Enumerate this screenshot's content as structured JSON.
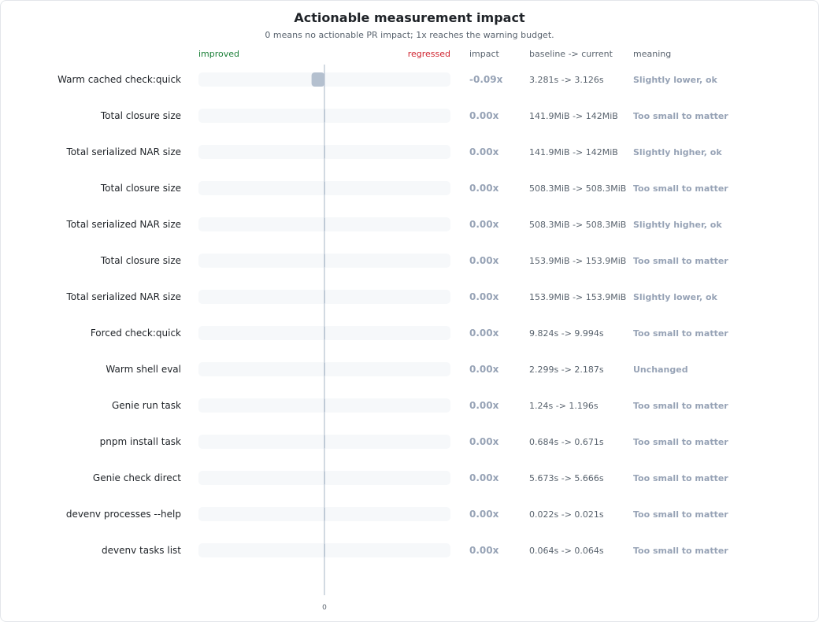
{
  "chart_data": {
    "type": "bar",
    "title": "Actionable measurement impact",
    "subtitle": "0 means no actionable PR impact; 1x reaches the warning budget.",
    "axis_left_label": "improved",
    "axis_right_label": "regressed",
    "xlim": [
      -1,
      1
    ],
    "zero_tick": "0",
    "column_headers": {
      "impact": "impact",
      "baseline": "baseline -> current",
      "meaning": "meaning"
    },
    "accent_color": "#b4c0cf",
    "rows": [
      {
        "label": "Warm cached check:quick",
        "value": -0.09,
        "impact": "-0.09x",
        "baseline": "3.281s -> 3.126s",
        "meaning": "Slightly lower, ok"
      },
      {
        "label": "Total closure size",
        "value": 0,
        "impact": "0.00x",
        "baseline": "141.9MiB -> 142MiB",
        "meaning": "Too small to matter"
      },
      {
        "label": "Total serialized NAR size",
        "value": 0,
        "impact": "0.00x",
        "baseline": "141.9MiB -> 142MiB",
        "meaning": "Slightly higher, ok"
      },
      {
        "label": "Total closure size",
        "value": 0,
        "impact": "0.00x",
        "baseline": "508.3MiB -> 508.3MiB",
        "meaning": "Too small to matter"
      },
      {
        "label": "Total serialized NAR size",
        "value": 0,
        "impact": "0.00x",
        "baseline": "508.3MiB -> 508.3MiB",
        "meaning": "Slightly higher, ok"
      },
      {
        "label": "Total closure size",
        "value": 0,
        "impact": "0.00x",
        "baseline": "153.9MiB -> 153.9MiB",
        "meaning": "Too small to matter"
      },
      {
        "label": "Total serialized NAR size",
        "value": 0,
        "impact": "0.00x",
        "baseline": "153.9MiB -> 153.9MiB",
        "meaning": "Slightly lower, ok"
      },
      {
        "label": "Forced check:quick",
        "value": 0,
        "impact": "0.00x",
        "baseline": "9.824s -> 9.994s",
        "meaning": "Too small to matter"
      },
      {
        "label": "Warm shell eval",
        "value": 0,
        "impact": "0.00x",
        "baseline": "2.299s -> 2.187s",
        "meaning": "Unchanged"
      },
      {
        "label": "Genie run task",
        "value": 0,
        "impact": "0.00x",
        "baseline": "1.24s -> 1.196s",
        "meaning": "Too small to matter"
      },
      {
        "label": "pnpm install task",
        "value": 0,
        "impact": "0.00x",
        "baseline": "0.684s -> 0.671s",
        "meaning": "Too small to matter"
      },
      {
        "label": "Genie check direct",
        "value": 0,
        "impact": "0.00x",
        "baseline": "5.673s -> 5.666s",
        "meaning": "Too small to matter"
      },
      {
        "label": "devenv processes --help",
        "value": 0,
        "impact": "0.00x",
        "baseline": "0.022s -> 0.021s",
        "meaning": "Too small to matter"
      },
      {
        "label": "devenv tasks list",
        "value": 0,
        "impact": "0.00x",
        "baseline": "0.064s -> 0.064s",
        "meaning": "Too small to matter"
      }
    ]
  }
}
